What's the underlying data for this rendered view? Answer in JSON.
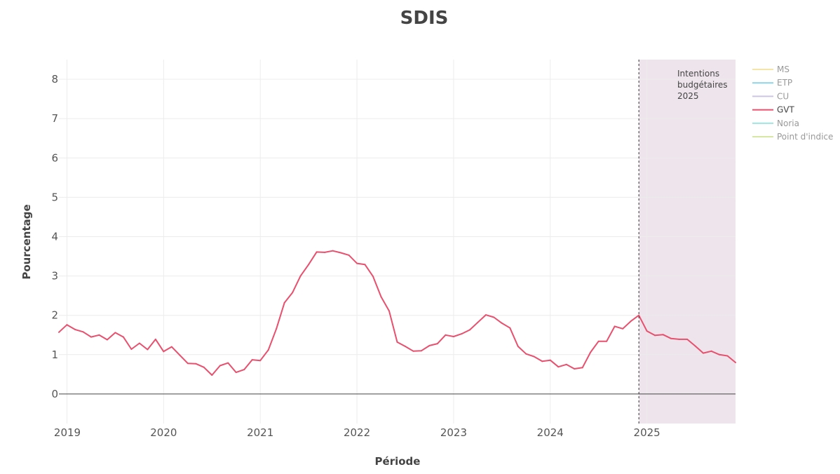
{
  "chart_data": {
    "type": "line",
    "title": "SDIS",
    "xlabel": "Période",
    "ylabel": "Pourcentage",
    "x_ticks": [
      "2019",
      "2020",
      "2021",
      "2022",
      "2023",
      "2024",
      "2025"
    ],
    "y_ticks": [
      "0",
      "1",
      "2",
      "3",
      "4",
      "5",
      "6",
      "7",
      "8"
    ],
    "xlim": [
      "2018-12",
      "2025-12"
    ],
    "ylim": [
      -0.75,
      8.5
    ],
    "grid": true,
    "legend_position": "right",
    "legend": [
      {
        "name": "MS",
        "color": "#f5e6a8",
        "active": false
      },
      {
        "name": "ETP",
        "color": "#8fd3e6",
        "active": false
      },
      {
        "name": "CU",
        "color": "#cdc6e3",
        "active": false
      },
      {
        "name": "GVT",
        "color": "#e8506e",
        "active": true
      },
      {
        "name": "Noria",
        "color": "#9fe3df",
        "active": false
      },
      {
        "name": "Point d'indice",
        "color": "#d6e8a3",
        "active": false
      }
    ],
    "shaded_region": {
      "start": "2024-12",
      "end": "2025-12",
      "color": "#ede4ec",
      "label_lines": [
        "Intentions",
        "budgétaires",
        "2025"
      ]
    },
    "series": [
      {
        "name": "GVT",
        "color": "#e8506e",
        "x": [
          "2018-12",
          "2019-01",
          "2019-02",
          "2019-03",
          "2019-04",
          "2019-05",
          "2019-06",
          "2019-07",
          "2019-08",
          "2019-09",
          "2019-10",
          "2019-11",
          "2019-12",
          "2020-01",
          "2020-02",
          "2020-03",
          "2020-04",
          "2020-05",
          "2020-06",
          "2020-07",
          "2020-08",
          "2020-09",
          "2020-10",
          "2020-11",
          "2020-12",
          "2021-01",
          "2021-02",
          "2021-03",
          "2021-04",
          "2021-05",
          "2021-06",
          "2021-07",
          "2021-08",
          "2021-09",
          "2021-10",
          "2021-11",
          "2021-12",
          "2022-01",
          "2022-02",
          "2022-03",
          "2022-04",
          "2022-05",
          "2022-06",
          "2022-07",
          "2022-08",
          "2022-09",
          "2022-10",
          "2022-11",
          "2022-12",
          "2023-01",
          "2023-02",
          "2023-03",
          "2023-04",
          "2023-05",
          "2023-06",
          "2023-07",
          "2023-08",
          "2023-09",
          "2023-10",
          "2023-11",
          "2023-12",
          "2024-01",
          "2024-02",
          "2024-03",
          "2024-04",
          "2024-05",
          "2024-06",
          "2024-07",
          "2024-08",
          "2024-09",
          "2024-10",
          "2024-11",
          "2024-12",
          "2025-01",
          "2025-02",
          "2025-03",
          "2025-04",
          "2025-05",
          "2025-06",
          "2025-07",
          "2025-08",
          "2025-09",
          "2025-10",
          "2025-11",
          "2025-12"
        ],
        "values": [
          1.57,
          1.76,
          1.64,
          1.58,
          1.45,
          1.5,
          1.38,
          1.56,
          1.45,
          1.14,
          1.29,
          1.13,
          1.39,
          1.08,
          1.2,
          0.99,
          0.78,
          0.77,
          0.68,
          0.48,
          0.72,
          0.79,
          0.55,
          0.62,
          0.87,
          0.85,
          1.12,
          1.66,
          2.32,
          2.58,
          3.0,
          3.29,
          3.61,
          3.6,
          3.64,
          3.59,
          3.53,
          3.32,
          3.29,
          2.99,
          2.47,
          2.11,
          1.32,
          1.21,
          1.09,
          1.1,
          1.23,
          1.28,
          1.5,
          1.46,
          1.53,
          1.63,
          1.82,
          2.01,
          1.95,
          1.8,
          1.68,
          1.21,
          1.02,
          0.95,
          0.83,
          0.86,
          0.69,
          0.75,
          0.64,
          0.67,
          1.06,
          1.34,
          1.34,
          1.72,
          1.66,
          1.85,
          2.0,
          1.6,
          1.49,
          1.51,
          1.41,
          1.39,
          1.39,
          1.22,
          1.04,
          1.09,
          1.0,
          0.97,
          0.8
        ]
      }
    ]
  }
}
